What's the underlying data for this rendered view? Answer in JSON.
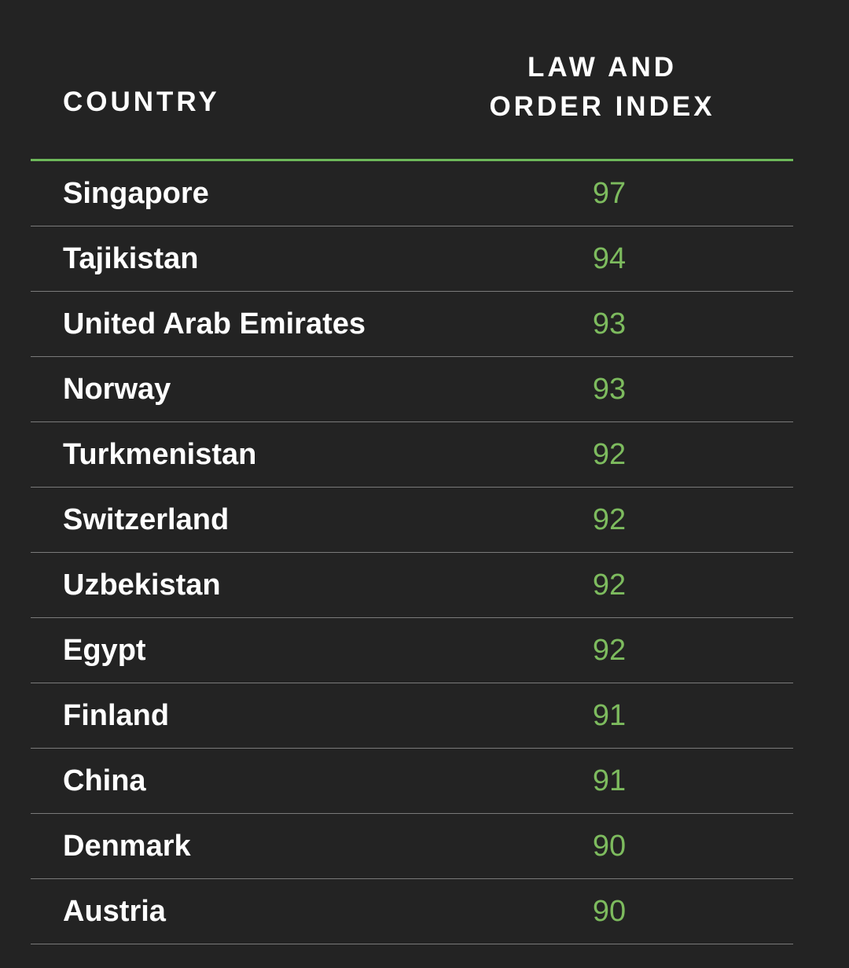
{
  "chart_data": {
    "type": "table",
    "columns": [
      "COUNTRY",
      "LAW AND ORDER INDEX"
    ],
    "header": {
      "country_label": "COUNTRY",
      "index_label_line1": "LAW AND",
      "index_label_line2": "ORDER INDEX"
    },
    "rows": [
      {
        "country": "Singapore",
        "value": "97"
      },
      {
        "country": "Tajikistan",
        "value": "94"
      },
      {
        "country": "United Arab Emirates",
        "value": "93"
      },
      {
        "country": "Norway",
        "value": "93"
      },
      {
        "country": "Turkmenistan",
        "value": "92"
      },
      {
        "country": "Switzerland",
        "value": "92"
      },
      {
        "country": "Uzbekistan",
        "value": "92"
      },
      {
        "country": "Egypt",
        "value": "92"
      },
      {
        "country": "Finland",
        "value": "91"
      },
      {
        "country": "China",
        "value": "91"
      },
      {
        "country": "Denmark",
        "value": "90"
      },
      {
        "country": "Austria",
        "value": "90"
      }
    ]
  },
  "colors": {
    "background": "#232323",
    "accent": "#6db85a",
    "value_text": "#7dbb5e",
    "text": "#ffffff",
    "divider": "#7a7a7a"
  }
}
